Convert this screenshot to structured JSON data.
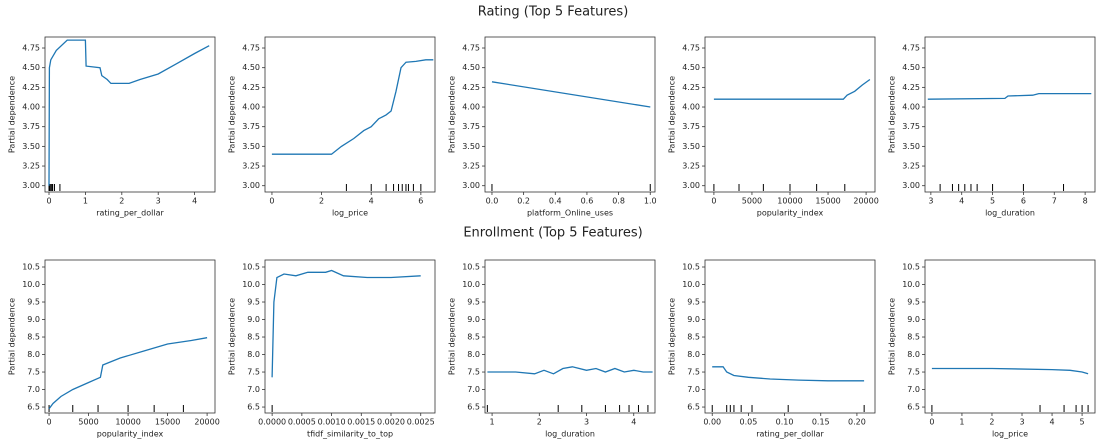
{
  "figure_titles": [
    "Rating (Top 5 Features)",
    "Enrollment (Top 5 Features)"
  ],
  "chart_data": [
    {
      "type": "line",
      "xlabel": "rating_per_dollar",
      "ylabel": "Partial dependence",
      "color": "#1f77b4",
      "x": [
        0,
        0.01,
        0.05,
        0.2,
        0.5,
        1.0,
        1.02,
        1.4,
        1.45,
        1.6,
        1.7,
        2.2,
        2.5,
        3.0,
        3.5,
        4.0,
        4.4
      ],
      "values": [
        3.0,
        4.5,
        4.6,
        4.72,
        4.85,
        4.85,
        4.52,
        4.5,
        4.4,
        4.35,
        4.3,
        4.3,
        4.35,
        4.42,
        4.55,
        4.68,
        4.78
      ],
      "rug": [
        0,
        0.02,
        0.05,
        0.08,
        0.1,
        0.15,
        0.3
      ],
      "xlim": [
        -0.11,
        4.56
      ],
      "xticks": [
        0,
        1,
        2,
        3,
        4
      ],
      "ylim": [
        2.92,
        4.89
      ],
      "yticks": [
        {
          "value": 3,
          "label": "3.00"
        },
        3.25,
        {
          "value": 3.5,
          "label": "3.50"
        },
        3.75,
        {
          "value": 4,
          "label": "4.00"
        },
        4.25,
        {
          "value": 4.5,
          "label": "4.50"
        },
        4.75
      ]
    },
    {
      "type": "line",
      "xlabel": "log_price",
      "ylabel": "Partial dependence",
      "color": "#1f77b4",
      "x": [
        0,
        2.4,
        2.8,
        3.3,
        3.7,
        4.0,
        4.3,
        4.6,
        4.8,
        5.0,
        5.2,
        5.4,
        5.8,
        6.2,
        6.5
      ],
      "values": [
        3.4,
        3.4,
        3.5,
        3.6,
        3.7,
        3.75,
        3.85,
        3.9,
        3.95,
        4.2,
        4.5,
        4.57,
        4.58,
        4.6,
        4.6
      ],
      "rug": [
        3.0,
        4.0,
        4.6,
        4.9,
        5.1,
        5.25,
        5.4,
        5.5,
        5.7,
        6.0
      ],
      "xlim": [
        -0.28,
        6.57
      ],
      "xticks": [
        0,
        2,
        4,
        6
      ],
      "ylim": [
        2.92,
        4.89
      ],
      "yticks": [
        {
          "value": 3,
          "label": "3.00"
        },
        3.25,
        {
          "value": 3.5,
          "label": "3.50"
        },
        3.75,
        {
          "value": 4,
          "label": "4.00"
        },
        4.25,
        {
          "value": 4.5,
          "label": "4.50"
        },
        4.75
      ]
    },
    {
      "type": "line",
      "xlabel": "platform_Online_uses",
      "ylabel": "Partial dependence",
      "color": "#1f77b4",
      "x": [
        0,
        1
      ],
      "values": [
        4.32,
        4.0
      ],
      "rug": [
        0,
        1
      ],
      "xlim": [
        -0.044,
        1.03
      ],
      "xticks": [
        {
          "value": 0,
          "label": "0.0"
        },
        0.2,
        0.4,
        0.6,
        0.8,
        {
          "value": 1,
          "label": "1.0"
        }
      ],
      "ylim": [
        2.92,
        4.89
      ],
      "yticks": [
        {
          "value": 3,
          "label": "3.00"
        },
        3.25,
        {
          "value": 3.5,
          "label": "3.50"
        },
        3.75,
        {
          "value": 4,
          "label": "4.00"
        },
        4.25,
        {
          "value": 4.5,
          "label": "4.50"
        },
        4.75
      ]
    },
    {
      "type": "line",
      "xlabel": "popularity_index",
      "ylabel": "Partial dependence",
      "color": "#1f77b4",
      "x": [
        0,
        17000,
        17500,
        18500,
        19500,
        20500
      ],
      "values": [
        4.1,
        4.1,
        4.15,
        4.2,
        4.28,
        4.35
      ],
      "rug": [
        0,
        3300,
        6500,
        10000,
        13500,
        17200
      ],
      "xlim": [
        -1170,
        21170
      ],
      "xticks": [
        0,
        5000,
        10000,
        15000,
        20000
      ],
      "ylim": [
        2.92,
        4.89
      ],
      "yticks": [
        {
          "value": 3,
          "label": "3.00"
        },
        3.25,
        {
          "value": 3.5,
          "label": "3.50"
        },
        3.75,
        {
          "value": 4,
          "label": "4.00"
        },
        4.25,
        {
          "value": 4.5,
          "label": "4.50"
        },
        4.75
      ]
    },
    {
      "type": "line",
      "xlabel": "log_duration",
      "ylabel": "Partial dependence",
      "color": "#1f77b4",
      "x": [
        2.9,
        5.4,
        5.5,
        6.3,
        6.5,
        8.2
      ],
      "values": [
        4.1,
        4.11,
        4.14,
        4.15,
        4.17,
        4.17
      ],
      "rug": [
        3.3,
        3.7,
        3.9,
        4.1,
        4.3,
        4.5,
        5.0,
        6.0,
        7.3
      ],
      "xlim": [
        2.81,
        8.32
      ],
      "xticks": [
        3,
        4,
        5,
        6,
        7,
        8
      ],
      "ylim": [
        2.92,
        4.89
      ],
      "yticks": [
        {
          "value": 3,
          "label": "3.00"
        },
        3.25,
        {
          "value": 3.5,
          "label": "3.50"
        },
        3.75,
        {
          "value": 4,
          "label": "4.00"
        },
        4.25,
        {
          "value": 4.5,
          "label": "4.50"
        },
        4.75
      ]
    },
    {
      "type": "line",
      "xlabel": "popularity_index",
      "ylabel": "Partial dependence",
      "color": "#1f77b4",
      "x": [
        0,
        500,
        1500,
        3000,
        5000,
        6500,
        6800,
        9000,
        12000,
        15000,
        18000,
        20000
      ],
      "values": [
        6.45,
        6.6,
        6.8,
        7.0,
        7.2,
        7.35,
        7.7,
        7.9,
        8.1,
        8.3,
        8.4,
        8.48
      ],
      "rug": [
        0,
        3000,
        6200,
        10000,
        13300,
        17000
      ],
      "xlim": [
        -513,
        21000
      ],
      "xticks": [
        0,
        5000,
        10000,
        15000,
        20000
      ],
      "ylim": [
        6.33,
        10.7
      ],
      "yticks": [
        6.5,
        {
          "value": 7,
          "label": "7.0"
        },
        7.5,
        {
          "value": 8,
          "label": "8.0"
        },
        8.5,
        {
          "value": 9,
          "label": "9.0"
        },
        9.5,
        {
          "value": 10,
          "label": "10.0"
        },
        10.5
      ]
    },
    {
      "type": "line",
      "xlabel": "tfidf_similarity_to_top",
      "ylabel": "Partial dependence",
      "color": "#1f77b4",
      "x": [
        0,
        3e-05,
        8e-05,
        0.0002,
        0.0004,
        0.0006,
        0.0009,
        0.001,
        0.0012,
        0.0016,
        0.002,
        0.0025
      ],
      "values": [
        7.35,
        9.5,
        10.2,
        10.3,
        10.25,
        10.35,
        10.35,
        10.4,
        10.25,
        10.2,
        10.2,
        10.25
      ],
      "rug": [
        0
      ],
      "xlim": [
        -0.00012,
        0.00274
      ],
      "xticks": [
        {
          "value": 0,
          "label": "0.0000"
        },
        0.0005,
        {
          "value": 0.001,
          "label": "0.0010"
        },
        0.0015,
        {
          "value": 0.002,
          "label": "0.0020"
        },
        0.0025
      ],
      "ylim": [
        6.33,
        10.7
      ],
      "yticks": [
        6.5,
        {
          "value": 7,
          "label": "7.0"
        },
        7.5,
        {
          "value": 8,
          "label": "8.0"
        },
        8.5,
        {
          "value": 9,
          "label": "9.0"
        },
        9.5,
        {
          "value": 10,
          "label": "10.0"
        },
        10.5
      ]
    },
    {
      "type": "line",
      "xlabel": "log_duration",
      "ylabel": "Partial dependence",
      "color": "#1f77b4",
      "x": [
        0.9,
        1.5,
        1.9,
        2.1,
        2.3,
        2.5,
        2.7,
        3.0,
        3.2,
        3.4,
        3.6,
        3.8,
        4.0,
        4.2,
        4.4
      ],
      "values": [
        7.5,
        7.5,
        7.45,
        7.55,
        7.45,
        7.6,
        7.65,
        7.55,
        7.6,
        7.5,
        7.6,
        7.5,
        7.55,
        7.5,
        7.5
      ],
      "rug": [
        0.9,
        2.4,
        2.9,
        3.4,
        3.7,
        3.9,
        4.1,
        4.3
      ],
      "xlim": [
        0.85,
        4.45
      ],
      "xticks": [
        1,
        2,
        3,
        4
      ],
      "ylim": [
        6.33,
        10.7
      ],
      "yticks": [
        6.5,
        {
          "value": 7,
          "label": "7.0"
        },
        7.5,
        {
          "value": 8,
          "label": "8.0"
        },
        8.5,
        {
          "value": 9,
          "label": "9.0"
        },
        9.5,
        {
          "value": 10,
          "label": "10.0"
        },
        10.5
      ]
    },
    {
      "type": "line",
      "xlabel": "rating_per_dollar",
      "ylabel": "Partial dependence",
      "color": "#1f77b4",
      "x": [
        0,
        0.015,
        0.02,
        0.03,
        0.05,
        0.08,
        0.12,
        0.16,
        0.21
      ],
      "values": [
        7.65,
        7.65,
        7.5,
        7.4,
        7.35,
        7.3,
        7.27,
        7.25,
        7.25
      ],
      "rug": [
        0,
        0.02,
        0.025,
        0.03,
        0.04,
        0.055,
        0.105,
        0.21
      ],
      "xlim": [
        -0.01,
        0.225
      ],
      "xticks": [
        {
          "value": 0,
          "label": "0.00"
        },
        0.05,
        {
          "value": 0.1,
          "label": "0.10"
        },
        0.15,
        {
          "value": 0.2,
          "label": "0.20"
        }
      ],
      "ylim": [
        6.33,
        10.7
      ],
      "yticks": [
        6.5,
        {
          "value": 7,
          "label": "7.0"
        },
        7.5,
        {
          "value": 8,
          "label": "8.0"
        },
        8.5,
        {
          "value": 9,
          "label": "9.0"
        },
        9.5,
        {
          "value": 10,
          "label": "10.0"
        },
        10.5
      ]
    },
    {
      "type": "line",
      "xlabel": "log_price",
      "ylabel": "Partial dependence",
      "color": "#1f77b4",
      "x": [
        0,
        2,
        4,
        4.6,
        5.0,
        5.2
      ],
      "values": [
        7.6,
        7.6,
        7.57,
        7.55,
        7.5,
        7.45
      ],
      "rug": [
        0,
        3.6,
        4.4,
        4.8,
        5.0,
        5.2
      ],
      "xlim": [
        -0.23,
        5.43
      ],
      "xticks": [
        0,
        1,
        2,
        3,
        4,
        5
      ],
      "ylim": [
        6.33,
        10.7
      ],
      "yticks": [
        6.5,
        {
          "value": 7,
          "label": "7.0"
        },
        7.5,
        {
          "value": 8,
          "label": "8.0"
        },
        8.5,
        {
          "value": 9,
          "label": "9.0"
        },
        9.5,
        {
          "value": 10,
          "label": "10.0"
        },
        10.5
      ]
    }
  ]
}
